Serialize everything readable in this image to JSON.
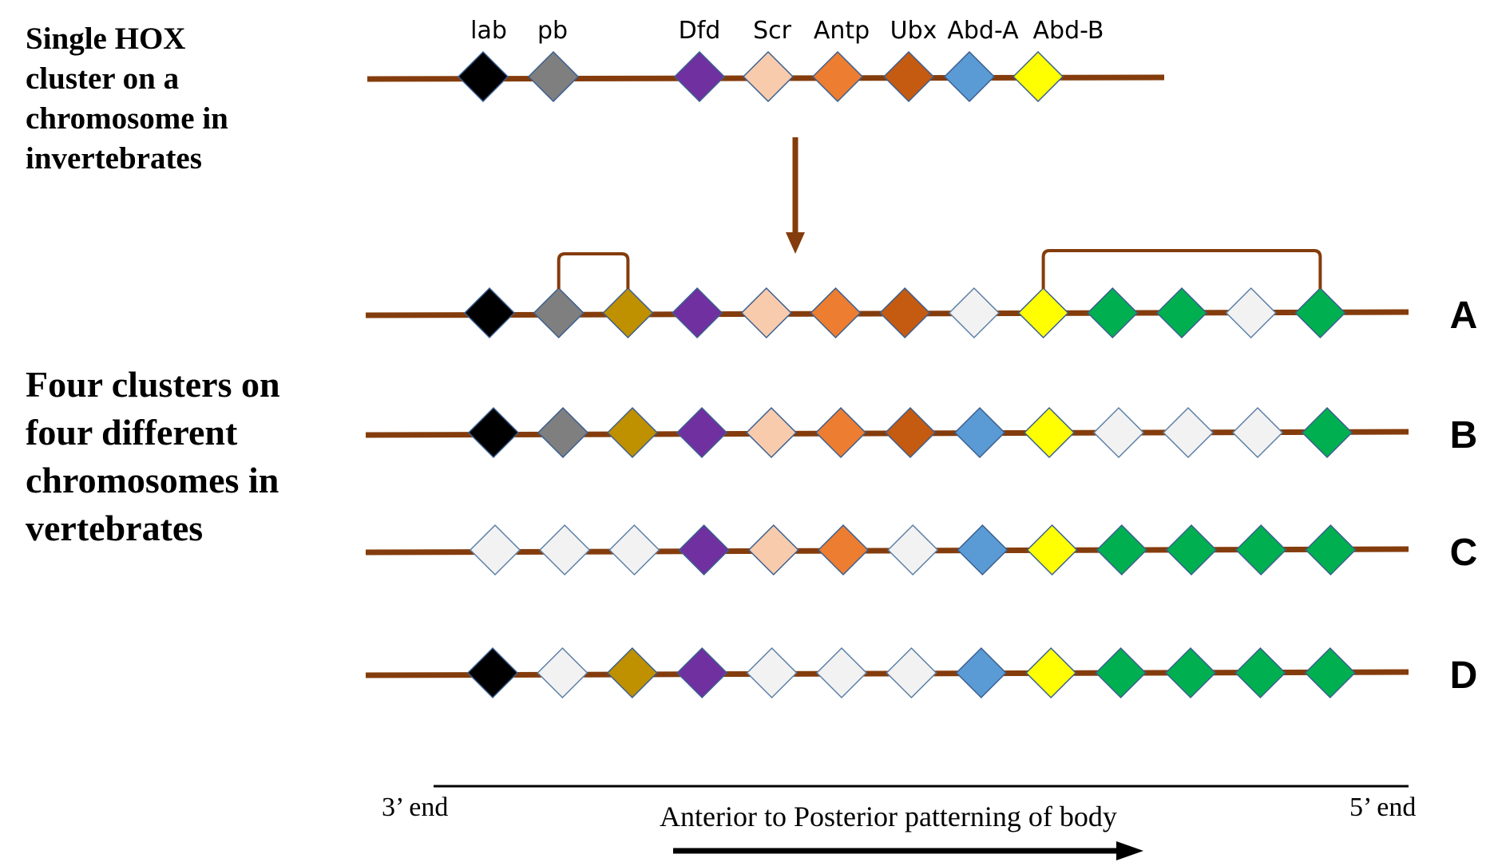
{
  "invertebrate_label": "Single HOX\ncluster on a\nchromosome in\ninvertebrates",
  "vertebrate_label": "Four clusters on\nfour different\nchromosomes in\nvertebrates",
  "gene_names": [
    "lab",
    "pb",
    "Dfd",
    "Scr",
    "Antp",
    "Ubx",
    "Abd-A",
    "Abd-B"
  ],
  "gene_colors": {
    "black": "#000000",
    "gray": "#7f7f7f",
    "gold": "#bf9000",
    "purple": "#7030a0",
    "peach": "#f8cbad",
    "orange": "#ed7d31",
    "rust": "#c55a11",
    "blue": "#5b9bd5",
    "yellow": "#ffff00",
    "green": "#00b050",
    "empty": "#f2f2f2"
  },
  "invertebrate_cluster": [
    "black",
    "gray",
    "purple",
    "peach",
    "orange",
    "rust",
    "blue",
    "yellow"
  ],
  "vertebrate_clusters": [
    {
      "label": "A",
      "genes": [
        "black",
        "gray",
        "gold",
        "purple",
        "peach",
        "orange",
        "rust",
        "empty",
        "yellow",
        "green",
        "green",
        "empty",
        "green"
      ]
    },
    {
      "label": "B",
      "genes": [
        "black",
        "gray",
        "gold",
        "purple",
        "peach",
        "orange",
        "rust",
        "blue",
        "yellow",
        "empty",
        "empty",
        "empty",
        "green"
      ]
    },
    {
      "label": "C",
      "genes": [
        "empty",
        "empty",
        "empty",
        "purple",
        "peach",
        "orange",
        "empty",
        "blue",
        "yellow",
        "green",
        "green",
        "green",
        "green"
      ]
    },
    {
      "label": "D",
      "genes": [
        "black",
        "empty",
        "gold",
        "purple",
        "empty",
        "empty",
        "empty",
        "blue",
        "yellow",
        "green",
        "green",
        "green",
        "green"
      ]
    }
  ],
  "three_prime_label": "3’ end",
  "five_prime_label": "5’ end",
  "axis_label": "Anterior to Posterior patterning of body",
  "line_color": "#843c0c"
}
